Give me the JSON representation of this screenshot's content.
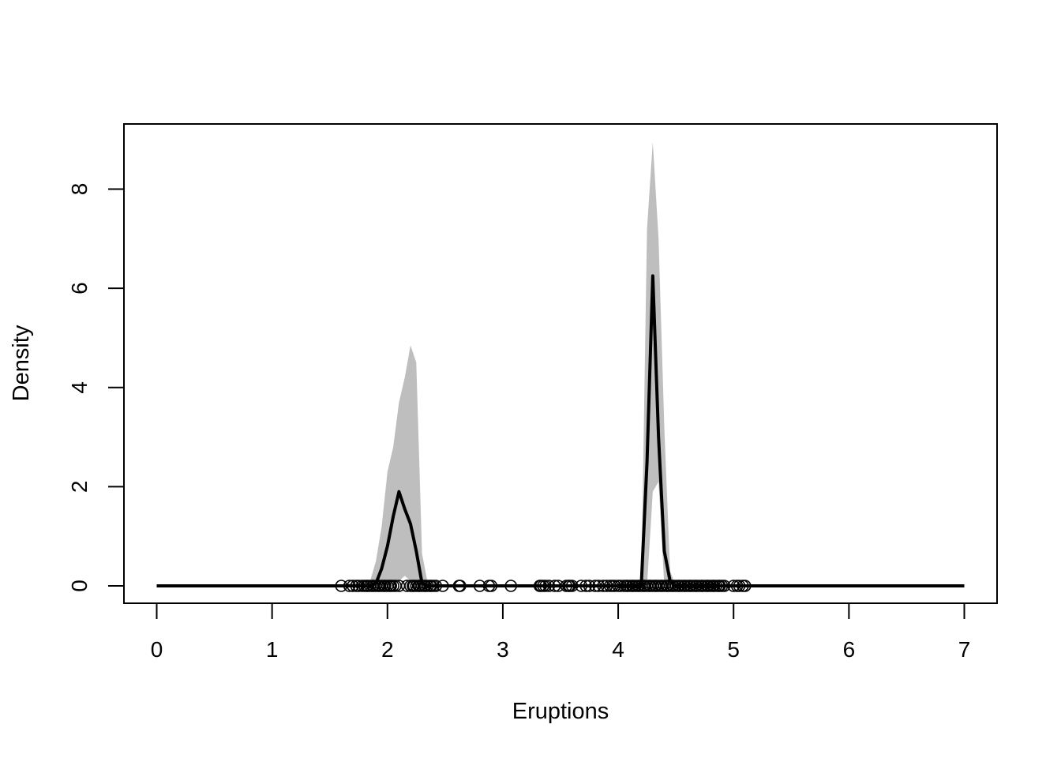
{
  "chart_data": {
    "type": "line",
    "title": "",
    "xlabel": "Eruptions",
    "ylabel": "Density",
    "xlim": [
      0,
      7
    ],
    "ylim": [
      0,
      9
    ],
    "xticks": [
      0,
      1,
      2,
      3,
      4,
      5,
      6,
      7
    ],
    "yticks": [
      0,
      2,
      4,
      6,
      8
    ],
    "grid": false,
    "legend": "none",
    "colors": {
      "line": "#000000",
      "band": "#bebebe",
      "points": "#000000"
    },
    "density": {
      "x": [
        0,
        1.5,
        1.85,
        1.9,
        1.95,
        2.0,
        2.05,
        2.1,
        2.15,
        2.2,
        2.25,
        2.3,
        2.35,
        2.4,
        4.2,
        4.25,
        4.3,
        4.35,
        4.4,
        4.45,
        4.5,
        7
      ],
      "y": [
        0,
        0,
        0,
        0.05,
        0.35,
        0.8,
        1.4,
        1.9,
        1.55,
        1.25,
        0.7,
        0.05,
        0,
        0,
        0,
        2.5,
        6.25,
        3.0,
        0.7,
        0.1,
        0,
        0
      ]
    },
    "band": {
      "x": [
        0,
        1.5,
        1.85,
        1.9,
        1.95,
        2.0,
        2.05,
        2.1,
        2.15,
        2.2,
        2.25,
        2.3,
        2.35,
        2.4,
        4.2,
        4.25,
        4.3,
        4.35,
        4.4,
        4.45,
        4.5,
        7
      ],
      "upper": [
        0,
        0,
        0.1,
        0.5,
        1.2,
        2.3,
        2.8,
        3.7,
        4.2,
        4.85,
        4.5,
        0.65,
        0.05,
        0,
        0,
        7.2,
        8.95,
        7.0,
        3.2,
        0.3,
        0,
        0
      ],
      "lower": [
        0,
        0,
        0,
        0,
        0,
        0,
        0,
        0.1,
        0.2,
        0.1,
        0,
        0,
        0,
        0,
        0,
        0,
        1.9,
        2.1,
        0,
        0,
        0,
        0
      ]
    },
    "observations": [
      1.6,
      1.67,
      1.7,
      1.73,
      1.75,
      1.78,
      1.8,
      1.82,
      1.83,
      1.85,
      1.87,
      1.88,
      1.9,
      1.92,
      1.93,
      1.95,
      1.97,
      1.98,
      2.0,
      2.02,
      2.03,
      2.05,
      2.07,
      2.1,
      2.17,
      2.2,
      2.22,
      2.23,
      2.25,
      2.27,
      2.28,
      2.3,
      2.32,
      2.33,
      2.35,
      2.37,
      2.38,
      2.4,
      2.42,
      2.48,
      2.62,
      2.63,
      2.8,
      2.88,
      2.9,
      3.07,
      3.32,
      3.33,
      3.35,
      3.37,
      3.4,
      3.45,
      3.48,
      3.55,
      3.57,
      3.58,
      3.6,
      3.68,
      3.72,
      3.75,
      3.8,
      3.83,
      3.87,
      3.9,
      3.93,
      3.95,
      3.97,
      4.0,
      4.02,
      4.05,
      4.07,
      4.08,
      4.1,
      4.12,
      4.13,
      4.15,
      4.17,
      4.18,
      4.2,
      4.22,
      4.23,
      4.25,
      4.27,
      4.28,
      4.3,
      4.32,
      4.33,
      4.35,
      4.37,
      4.38,
      4.4,
      4.42,
      4.43,
      4.45,
      4.47,
      4.48,
      4.5,
      4.52,
      4.53,
      4.55,
      4.57,
      4.58,
      4.6,
      4.62,
      4.63,
      4.65,
      4.67,
      4.68,
      4.7,
      4.72,
      4.73,
      4.75,
      4.77,
      4.78,
      4.8,
      4.82,
      4.83,
      4.85,
      4.87,
      4.88,
      4.9,
      4.92,
      5.0,
      5.03,
      5.05,
      5.08,
      5.1
    ]
  }
}
